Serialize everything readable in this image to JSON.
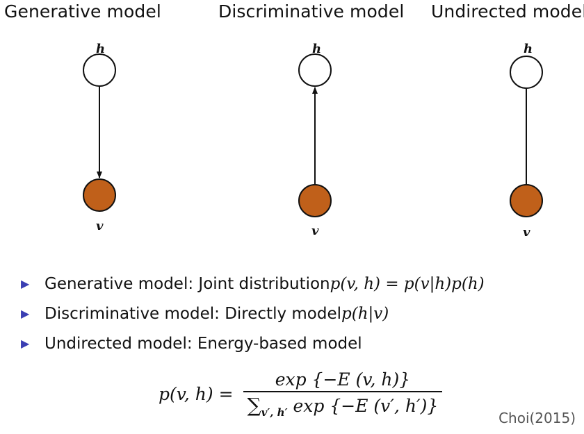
{
  "titles": {
    "generative": "Generative model",
    "discriminative": "Discriminative model",
    "undirected": "Undirected model"
  },
  "node_labels": {
    "hidden": "h",
    "visible": "v"
  },
  "colors": {
    "visible_node": "#c0601a",
    "hidden_node": "#ffffff",
    "bullet": "#3b3fb3"
  },
  "bullets": [
    {
      "text": "Generative model: Joint distribution ",
      "math": "p(v, h) = p(v|h)p(h)"
    },
    {
      "text": "Discriminative model: Directly model ",
      "math": "p(h|v)"
    },
    {
      "text": "Undirected model: Energy-based model",
      "math": ""
    }
  ],
  "formula": {
    "lhs": "p(v, h) =",
    "numerator": "exp {−E (v, h)}",
    "denominator_sum": "∑",
    "denominator_sub": "v′, h′",
    "denominator_rest": "exp {−E (v′, h′)}"
  },
  "citation": "Choi(2015)"
}
